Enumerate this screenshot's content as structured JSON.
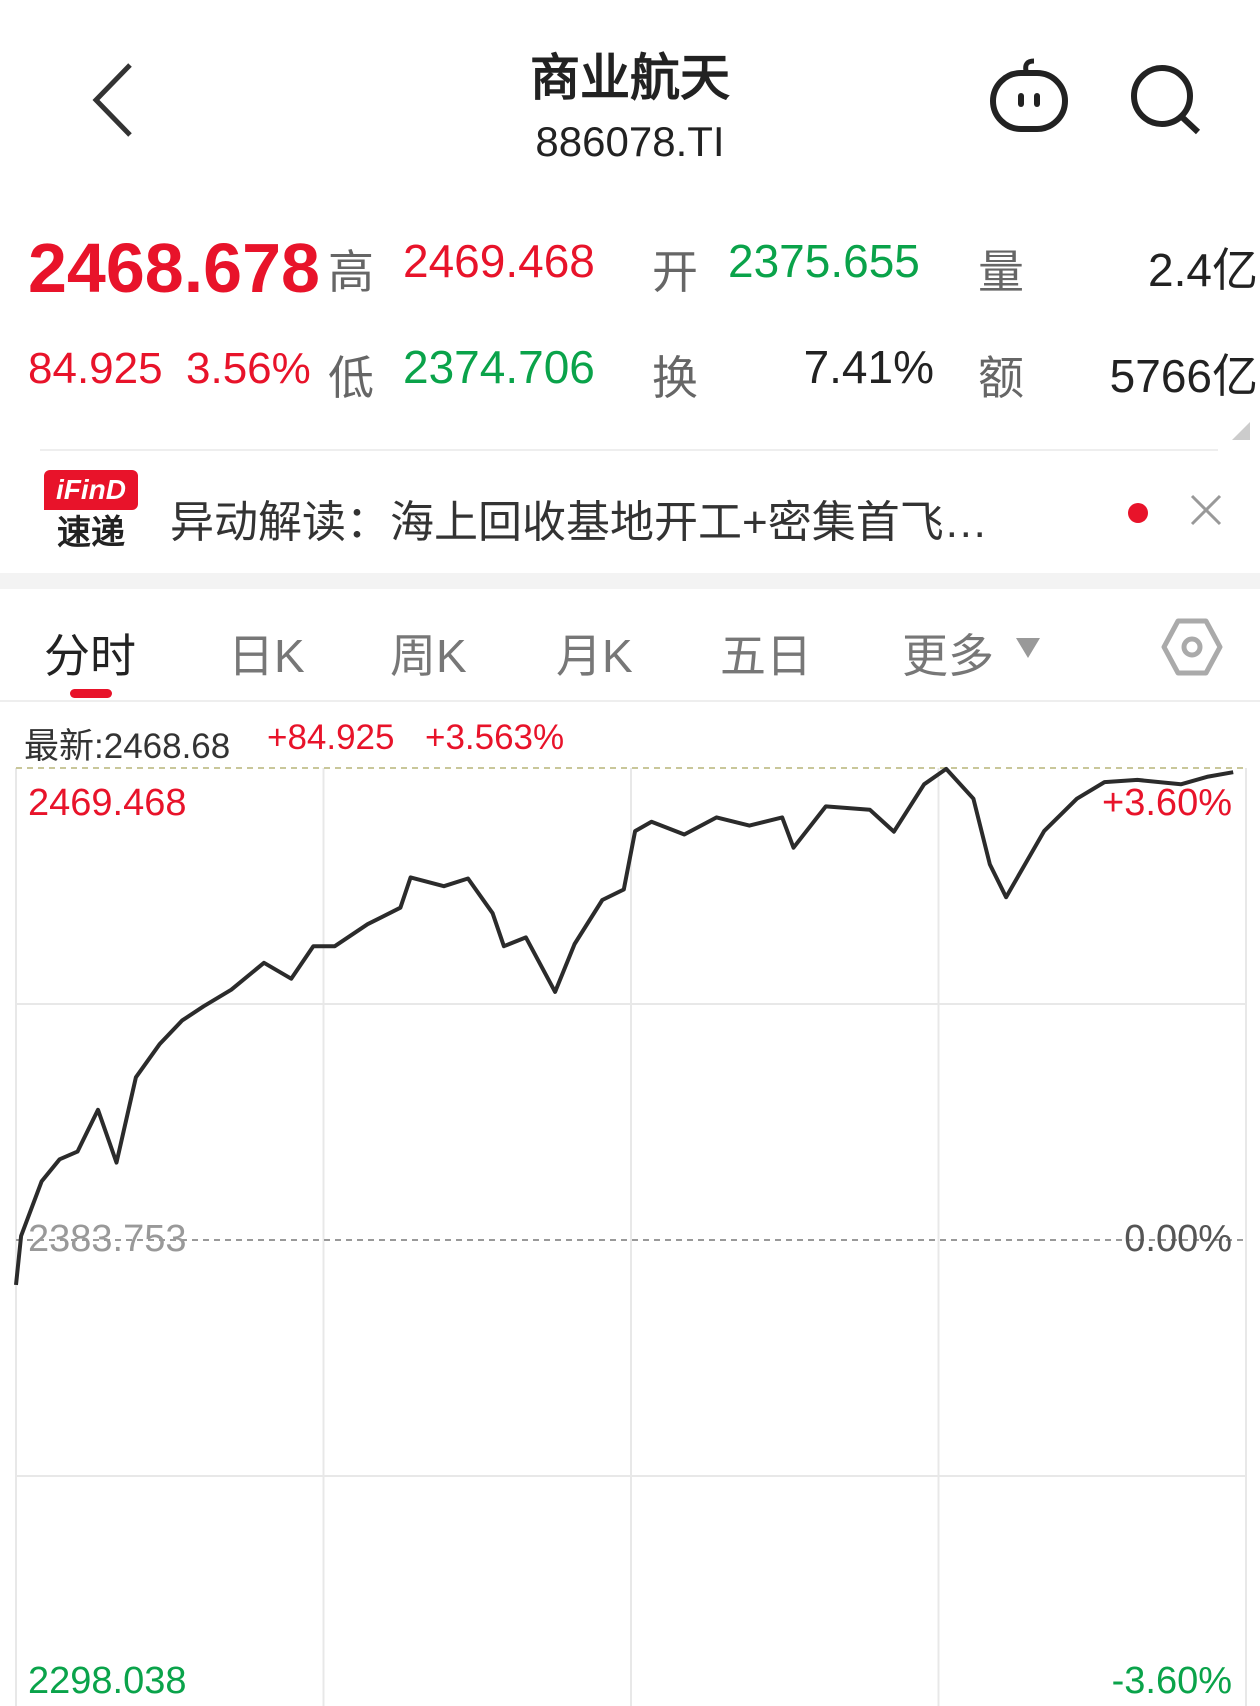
{
  "header": {
    "title": "商业航天",
    "code": "886078.TI",
    "icons": [
      "back-chevron-icon",
      "robot-assistant-icon",
      "search-icon"
    ]
  },
  "quote": {
    "price": "2468.678",
    "change": "84.925",
    "change_pct": "3.56%",
    "high_label": "高",
    "high": "2469.468",
    "low_label": "低",
    "low": "2374.706",
    "open_label": "开",
    "open": "2375.655",
    "turnover_label": "换",
    "turnover": "7.41%",
    "volume_label": "量",
    "volume": "2.4亿",
    "amount_label": "额",
    "amount": "5766亿"
  },
  "news": {
    "badge_top": "iFinD",
    "badge_bottom": "速递",
    "text": "异动解读：海上回收基地开工+密集首飞…"
  },
  "tabs": [
    {
      "label": "分时",
      "active": true
    },
    {
      "label": "日K"
    },
    {
      "label": "周K"
    },
    {
      "label": "月K"
    },
    {
      "label": "五日"
    },
    {
      "label": "更多"
    }
  ],
  "info": {
    "latest": "最新:2468.68",
    "change": "+84.925",
    "change_pct": "+3.563%"
  },
  "colors": {
    "up": "#e8132a",
    "down": "#0aa34a",
    "line": "#2b2b2b"
  },
  "chart_data": {
    "type": "line",
    "ylim": [
      2298.038,
      2469.468
    ],
    "xlim": [
      0,
      240
    ],
    "grid": true,
    "y_left_labels": [
      "2469.468",
      "2383.753",
      "2298.038"
    ],
    "y_right_labels": [
      "+3.60%",
      "0.00%",
      "-3.60%"
    ],
    "baseline": 2383.753,
    "points": [
      [
        0,
        2375.6
      ],
      [
        1,
        2384.5
      ],
      [
        5,
        2394.4
      ],
      [
        8.5,
        2398.4
      ],
      [
        12,
        2399.8
      ],
      [
        16,
        2407.4
      ],
      [
        19.6,
        2397.8
      ],
      [
        23.4,
        2413.3
      ],
      [
        28,
        2419.3
      ],
      [
        32.4,
        2423.6
      ],
      [
        36.6,
        2426.2
      ],
      [
        42,
        2429.2
      ],
      [
        48.4,
        2434.1
      ],
      [
        53.7,
        2431.2
      ],
      [
        58,
        2437.1
      ],
      [
        62.2,
        2437.1
      ],
      [
        68.6,
        2441.1
      ],
      [
        75,
        2444.1
      ],
      [
        77,
        2449.6
      ],
      [
        83.5,
        2448.0
      ],
      [
        88.2,
        2449.4
      ],
      [
        93,
        2443.1
      ],
      [
        95.2,
        2437.1
      ],
      [
        99.5,
        2438.7
      ],
      [
        105.2,
        2428.8
      ],
      [
        109,
        2437.5
      ],
      [
        114.4,
        2445.5
      ],
      [
        118.6,
        2447.4
      ],
      [
        120.8,
        2458.0
      ],
      [
        124,
        2459.7
      ],
      [
        130.4,
        2457.4
      ],
      [
        136.7,
        2460.5
      ],
      [
        143.1,
        2459.0
      ],
      [
        149.5,
        2460.5
      ],
      [
        151.7,
        2455.0
      ],
      [
        158,
        2462.5
      ],
      [
        166.6,
        2461.9
      ],
      [
        171.3,
        2457.9
      ],
      [
        177.2,
        2466.5
      ],
      [
        181.5,
        2469.3
      ],
      [
        186.8,
        2463.9
      ],
      [
        190,
        2452.0
      ],
      [
        193.2,
        2446.0
      ],
      [
        197.5,
        2453.0
      ],
      [
        200.6,
        2458.0
      ],
      [
        207,
        2463.9
      ],
      [
        212.4,
        2466.9
      ],
      [
        218.8,
        2467.3
      ],
      [
        227.3,
        2466.5
      ],
      [
        232.6,
        2467.9
      ],
      [
        237.5,
        2468.7
      ]
    ]
  }
}
